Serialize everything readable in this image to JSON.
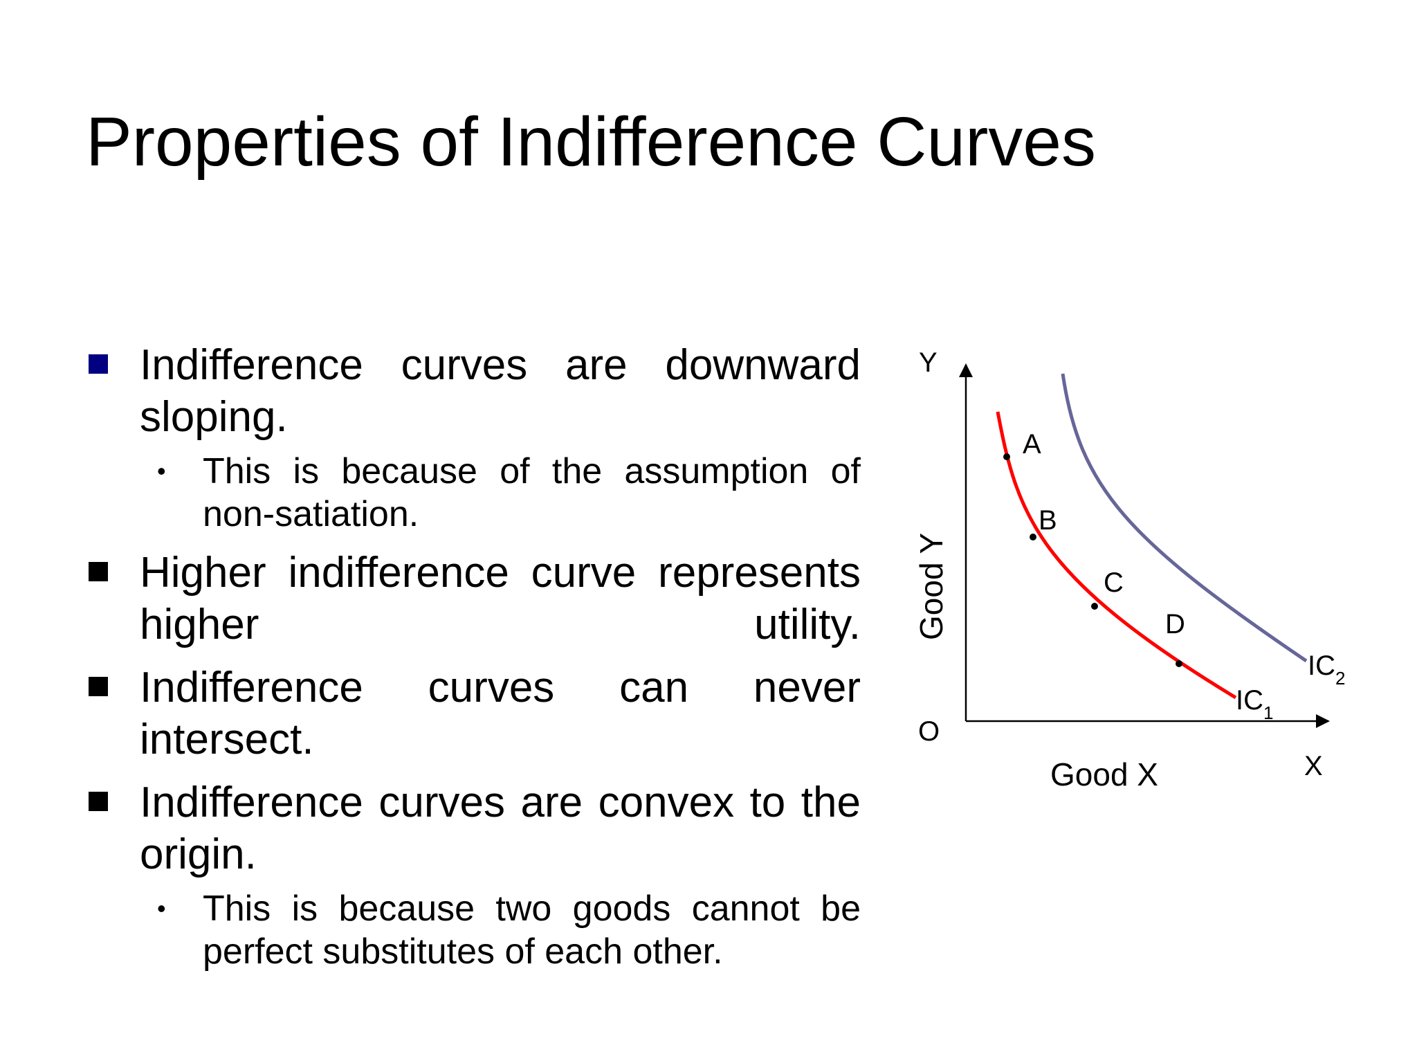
{
  "slide": {
    "title": "Properties of Indifference Curves",
    "points": [
      {
        "text": "Indifference curves are downward sloping.",
        "sub": [
          "This is because of the assumption of non-satiation."
        ]
      },
      {
        "text": "Higher indifference curve represents higher utility.",
        "sub": []
      },
      {
        "text": "Indifference curves can never intersect.",
        "sub": []
      },
      {
        "text": "Indifference curves are convex to the origin.",
        "sub": [
          "This is because two goods cannot be perfect substitutes of each other."
        ]
      }
    ]
  },
  "colors": {
    "ic1": "#ff0000",
    "ic2": "#666699",
    "first_bullet": "#000080",
    "axis": "#000000"
  },
  "chart_data": {
    "type": "line",
    "title": "",
    "xlabel": "Good X",
    "ylabel": "Good Y",
    "x_axis_end_label": "X",
    "y_axis_end_label": "Y",
    "origin_label": "O",
    "grid": false,
    "series": [
      {
        "name": "IC1",
        "label_main": "IC",
        "label_sub": "1",
        "color": "#ff0000"
      },
      {
        "name": "IC2",
        "label_main": "IC",
        "label_sub": "2",
        "color": "#666699"
      }
    ],
    "points_on_ic1": [
      "A",
      "B",
      "C",
      "D"
    ]
  }
}
